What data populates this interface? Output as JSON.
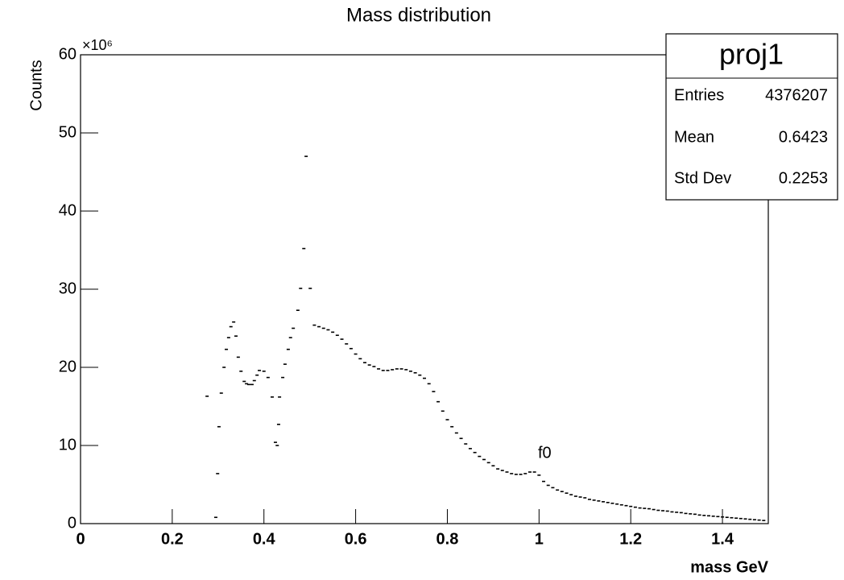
{
  "chart_data": {
    "type": "scatter",
    "title": "Mass distribution",
    "x_label": "mass GeV",
    "y_label": "Counts",
    "y_multiplier": "×10⁶",
    "annotation": "f0",
    "color": "#000000",
    "xlim": [
      0,
      1.5
    ],
    "xticks": [
      0,
      0.2,
      0.4,
      0.6,
      0.8,
      1,
      1.2,
      1.4
    ],
    "ylim": [
      0,
      60
    ],
    "yticks": [
      0,
      10,
      20,
      30,
      40,
      50,
      60
    ],
    "x": [
      0.276,
      0.295,
      0.299,
      0.302,
      0.307,
      0.313,
      0.318,
      0.323,
      0.328,
      0.334,
      0.339,
      0.344,
      0.35,
      0.357,
      0.362,
      0.367,
      0.374,
      0.379,
      0.385,
      0.39,
      0.4,
      0.409,
      0.418,
      0.425,
      0.429,
      0.432,
      0.434,
      0.441,
      0.446,
      0.453,
      0.458,
      0.464,
      0.474,
      0.48,
      0.487,
      0.492,
      0.501,
      0.51,
      0.52,
      0.53,
      0.54,
      0.55,
      0.56,
      0.57,
      0.58,
      0.59,
      0.6,
      0.61,
      0.62,
      0.63,
      0.64,
      0.65,
      0.66,
      0.67,
      0.68,
      0.69,
      0.7,
      0.71,
      0.72,
      0.73,
      0.74,
      0.75,
      0.76,
      0.77,
      0.78,
      0.79,
      0.8,
      0.81,
      0.82,
      0.83,
      0.84,
      0.85,
      0.86,
      0.87,
      0.88,
      0.89,
      0.9,
      0.91,
      0.92,
      0.93,
      0.94,
      0.95,
      0.96,
      0.97,
      0.98,
      0.99,
      1.0,
      1.01,
      1.02,
      1.03,
      1.04,
      1.05,
      1.06,
      1.07,
      1.08,
      1.09,
      1.1,
      1.11,
      1.12,
      1.13,
      1.14,
      1.15,
      1.16,
      1.17,
      1.18,
      1.19,
      1.2,
      1.21,
      1.22,
      1.23,
      1.24,
      1.25,
      1.26,
      1.27,
      1.28,
      1.29,
      1.3,
      1.31,
      1.32,
      1.33,
      1.34,
      1.35,
      1.36,
      1.37,
      1.38,
      1.39,
      1.4,
      1.41,
      1.42,
      1.43,
      1.44,
      1.45,
      1.46,
      1.47,
      1.48,
      1.49
    ],
    "values": [
      16.3,
      0.8,
      6.4,
      12.4,
      16.7,
      20.0,
      22.3,
      23.8,
      25.2,
      25.8,
      24.0,
      21.3,
      19.5,
      18.2,
      17.9,
      17.8,
      17.8,
      18.3,
      19.0,
      19.6,
      19.5,
      18.7,
      16.2,
      10.4,
      10.0,
      12.7,
      16.2,
      18.7,
      20.4,
      22.3,
      23.8,
      25.0,
      27.3,
      30.1,
      35.2,
      47.0,
      30.1,
      25.4,
      25.2,
      25.0,
      24.8,
      24.5,
      24.1,
      23.6,
      23.0,
      22.4,
      21.7,
      21.1,
      20.6,
      20.3,
      20.1,
      19.8,
      19.6,
      19.6,
      19.7,
      19.8,
      19.8,
      19.7,
      19.5,
      19.3,
      19.0,
      18.6,
      17.9,
      16.9,
      15.6,
      14.4,
      13.3,
      12.4,
      11.6,
      10.9,
      10.2,
      9.6,
      9.1,
      8.6,
      8.2,
      7.8,
      7.4,
      7.0,
      6.8,
      6.6,
      6.4,
      6.3,
      6.3,
      6.4,
      6.6,
      6.6,
      6.2,
      5.4,
      4.9,
      4.6,
      4.3,
      4.1,
      3.9,
      3.7,
      3.5,
      3.4,
      3.3,
      3.1,
      3.0,
      2.9,
      2.8,
      2.7,
      2.6,
      2.5,
      2.4,
      2.3,
      2.2,
      2.1,
      2.0,
      1.95,
      1.9,
      1.8,
      1.7,
      1.65,
      1.6,
      1.5,
      1.45,
      1.4,
      1.3,
      1.25,
      1.2,
      1.1,
      1.05,
      1.0,
      0.95,
      0.9,
      0.85,
      0.8,
      0.75,
      0.7,
      0.65,
      0.6,
      0.55,
      0.5,
      0.45,
      0.4
    ],
    "stats": {
      "title": "proj1",
      "rows": [
        [
          "Entries",
          "4376207"
        ],
        [
          "Mean",
          "0.6423"
        ],
        [
          "Std Dev",
          "0.2253"
        ]
      ]
    }
  }
}
